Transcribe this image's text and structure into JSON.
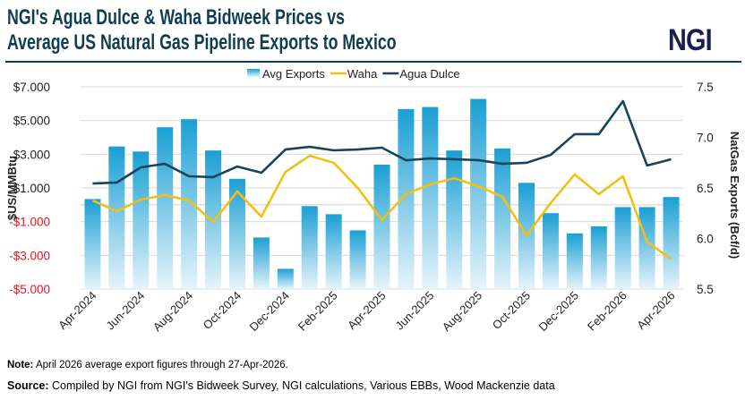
{
  "title_line1": "NGI's Agua Dulce & Waha Bidweek Prices vs",
  "title_line2": "Average US Natural Gas Pipeline Exports to Mexico",
  "logo_text": "NGI",
  "note_label": "Note:",
  "note_text": " April 2026 average export figures through 27-Apr-2026.",
  "source_label": "Source:",
  "source_text": " Compiled by NGI from NGI's Bidweek Survey, NGI calculations, Various EBBs, Wood Mackenzie data",
  "chart_data": {
    "type": "bar+line",
    "legend_position": "top",
    "grid": true,
    "categories": [
      "Apr-2024",
      "May-2024",
      "Jun-2024",
      "Jul-2024",
      "Aug-2024",
      "Sep-2024",
      "Oct-2024",
      "Nov-2024",
      "Dec-2024",
      "Jan-2025",
      "Feb-2025",
      "Mar-2025",
      "Apr-2025",
      "May-2025",
      "Jun-2025",
      "Jul-2025",
      "Aug-2025",
      "Sep-2025",
      "Oct-2025",
      "Nov-2025",
      "Dec-2025",
      "Jan-2026",
      "Feb-2026",
      "Mar-2026",
      "Apr-2026"
    ],
    "tick_labels": [
      "Apr-2024",
      "Jun-2024",
      "Aug-2024",
      "Oct-2024",
      "Dec-2024",
      "Feb-2025",
      "Apr-2025",
      "Jun-2025",
      "Aug-2025",
      "Oct-2025",
      "Dec-2025",
      "Feb-2026",
      "Apr-2026"
    ],
    "left_axis": {
      "label": "$US/MMBtu",
      "ylim": [
        -5,
        7
      ],
      "ticks": [
        "$7.000",
        "$5.000",
        "$3.000",
        "$1.000",
        "-$1.000",
        "-$3.000",
        "-$5.000"
      ],
      "tick_values": [
        7,
        5,
        3,
        1,
        -1,
        -3,
        -5
      ],
      "negative_color": "#e8141b"
    },
    "right_axis": {
      "label": "NatGas Exports  (Bcf/d)",
      "ylim": [
        5.5,
        7.5
      ],
      "ticks": [
        "7.5",
        "7.0",
        "6.5",
        "6.0",
        "5.5"
      ],
      "tick_values": [
        7.5,
        7.0,
        6.5,
        6.0,
        5.5
      ]
    },
    "series": [
      {
        "name": "Avg Exports",
        "type": "bar",
        "axis": "right",
        "color": "#1a9fd4",
        "values": [
          6.39,
          6.91,
          6.86,
          7.1,
          7.18,
          6.87,
          6.59,
          6.01,
          5.7,
          6.32,
          6.24,
          6.08,
          6.73,
          7.28,
          7.3,
          6.87,
          7.38,
          6.89,
          6.55,
          6.25,
          6.05,
          6.12,
          6.31,
          6.31,
          6.41
        ]
      },
      {
        "name": "Waha",
        "type": "line",
        "axis": "left",
        "color": "#f2c014",
        "values": [
          0.26,
          -0.38,
          0.31,
          0.57,
          0.26,
          -1.02,
          0.79,
          -0.7,
          1.95,
          2.91,
          2.49,
          1.0,
          -0.91,
          0.63,
          1.21,
          1.58,
          1.1,
          0.47,
          -1.82,
          0.1,
          1.8,
          0.63,
          1.69,
          -2.2,
          -3.22
        ]
      },
      {
        "name": "Agua Dulce",
        "type": "line",
        "axis": "left",
        "color": "#17455a",
        "values": [
          1.26,
          1.32,
          2.22,
          2.43,
          1.69,
          1.64,
          2.27,
          1.9,
          3.28,
          3.44,
          3.23,
          3.28,
          3.39,
          2.64,
          2.75,
          2.7,
          2.65,
          2.43,
          2.49,
          2.96,
          4.19,
          4.19,
          6.15,
          2.33,
          2.7
        ]
      }
    ]
  }
}
